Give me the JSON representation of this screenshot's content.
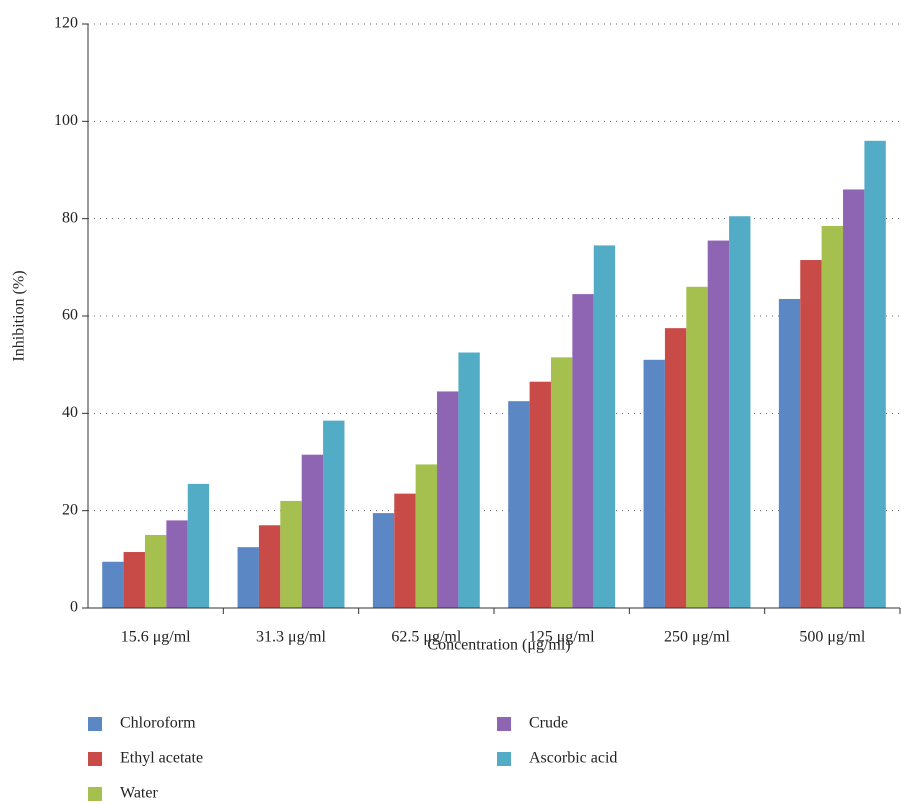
{
  "chart_data": {
    "type": "bar",
    "xlabel": "Concentration (μg/ml)",
    "ylabel": "Inhibition (%)",
    "categories": [
      "15.6 μg/ml",
      "31.3 μg/ml",
      "62.5 μg/ml",
      "125 μg/ml",
      "250 μg/ml",
      "500 μg/ml"
    ],
    "series": [
      {
        "name": "Chloroform",
        "color": "#5b87c5",
        "values": [
          9.5,
          12.5,
          19.5,
          42.5,
          51,
          63.5
        ]
      },
      {
        "name": "Ethyl acetate",
        "color": "#c84b48",
        "values": [
          11.5,
          17,
          23.5,
          46.5,
          57.5,
          71.5
        ]
      },
      {
        "name": "Water",
        "color": "#a5c04e",
        "values": [
          15,
          22,
          29.5,
          51.5,
          66,
          78.5
        ]
      },
      {
        "name": "Crude",
        "color": "#8e65b3",
        "values": [
          18,
          31.5,
          44.5,
          64.5,
          75.5,
          86
        ]
      },
      {
        "name": "Ascorbic acid",
        "color": "#52acc6",
        "values": [
          25.5,
          38.5,
          52.5,
          74.5,
          80.5,
          96
        ]
      }
    ],
    "ylim": [
      0,
      120
    ],
    "yticks": [
      0,
      20,
      40,
      60,
      80,
      100,
      120
    ],
    "grid": true,
    "legend": "bottom"
  }
}
